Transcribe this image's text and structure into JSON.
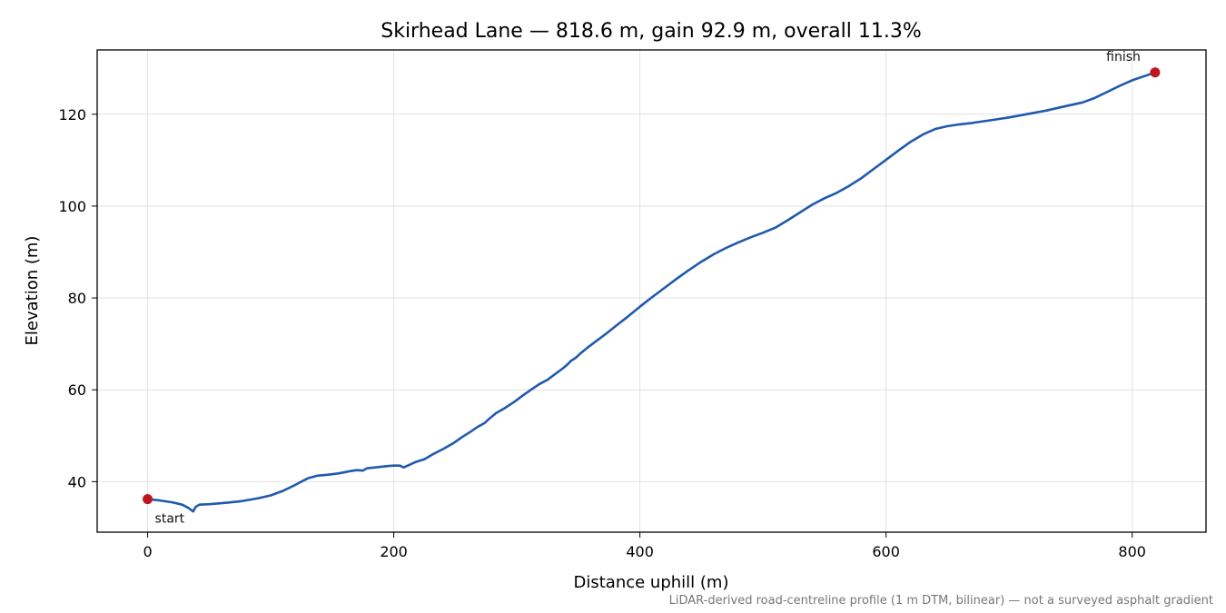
{
  "chart_data": {
    "type": "line",
    "title": "Skirhead Lane — 818.6 m, gain 92.9 m, overall 11.3%",
    "xlabel": "Distance uphill (m)",
    "ylabel": "Elevation (m)",
    "xlim": [
      -41,
      860
    ],
    "ylim": [
      29,
      134
    ],
    "xticks": [
      0,
      200,
      400,
      600,
      800
    ],
    "yticks": [
      40,
      60,
      80,
      100,
      120
    ],
    "grid": true,
    "line_color": "#1f5aad",
    "marker_color": "#c0151f",
    "footnote": "LiDAR-derived road-centreline profile (1 m DTM, bilinear) — not a surveyed asphalt gradient",
    "annotations": [
      {
        "label": "start",
        "x": 0,
        "y": 36.2
      },
      {
        "label": "finish",
        "x": 818.6,
        "y": 129.1
      }
    ],
    "series": [
      {
        "x": [
          0,
          10,
          20,
          28,
          33,
          37,
          39,
          42,
          50,
          60,
          75,
          90,
          100,
          110,
          120,
          130,
          138,
          146,
          155,
          165,
          170,
          175,
          178,
          185,
          195,
          200,
          205,
          208,
          213,
          218,
          225,
          232,
          240,
          248,
          256,
          262,
          268,
          274,
          278,
          283,
          290,
          298,
          305,
          312,
          318,
          325,
          332,
          338,
          341,
          344,
          348,
          352,
          358,
          365,
          372,
          380,
          390,
          400,
          410,
          420,
          430,
          440,
          450,
          460,
          470,
          480,
          490,
          500,
          510,
          520,
          530,
          540,
          550,
          560,
          570,
          580,
          590,
          600,
          610,
          620,
          630,
          640,
          650,
          660,
          670,
          680,
          690,
          700,
          710,
          720,
          730,
          740,
          750,
          760,
          770,
          780,
          790,
          800,
          810,
          818.6
        ],
        "y": [
          36.2,
          35.9,
          35.5,
          35.0,
          34.3,
          33.5,
          34.5,
          35.0,
          35.1,
          35.3,
          35.7,
          36.4,
          37.0,
          38.0,
          39.3,
          40.7,
          41.3,
          41.5,
          41.8,
          42.3,
          42.5,
          42.4,
          42.9,
          43.1,
          43.4,
          43.5,
          43.5,
          43.1,
          43.7,
          44.3,
          44.9,
          46.0,
          47.1,
          48.3,
          49.8,
          50.8,
          51.9,
          52.8,
          53.8,
          54.9,
          56.0,
          57.4,
          58.8,
          60.1,
          61.2,
          62.2,
          63.6,
          64.8,
          65.5,
          66.3,
          67.0,
          68.0,
          69.3,
          70.7,
          72.1,
          73.8,
          75.9,
          78.1,
          80.2,
          82.2,
          84.2,
          86.1,
          87.9,
          89.5,
          90.9,
          92.1,
          93.2,
          94.2,
          95.3,
          96.9,
          98.6,
          100.3,
          101.7,
          102.9,
          104.4,
          106.1,
          108.1,
          110.1,
          112.1,
          114.0,
          115.6,
          116.8,
          117.4,
          117.8,
          118.1,
          118.5,
          118.9,
          119.3,
          119.8,
          120.3,
          120.8,
          121.4,
          122.0,
          122.6,
          123.6,
          124.9,
          126.2,
          127.4,
          128.3,
          129.1
        ]
      }
    ]
  }
}
